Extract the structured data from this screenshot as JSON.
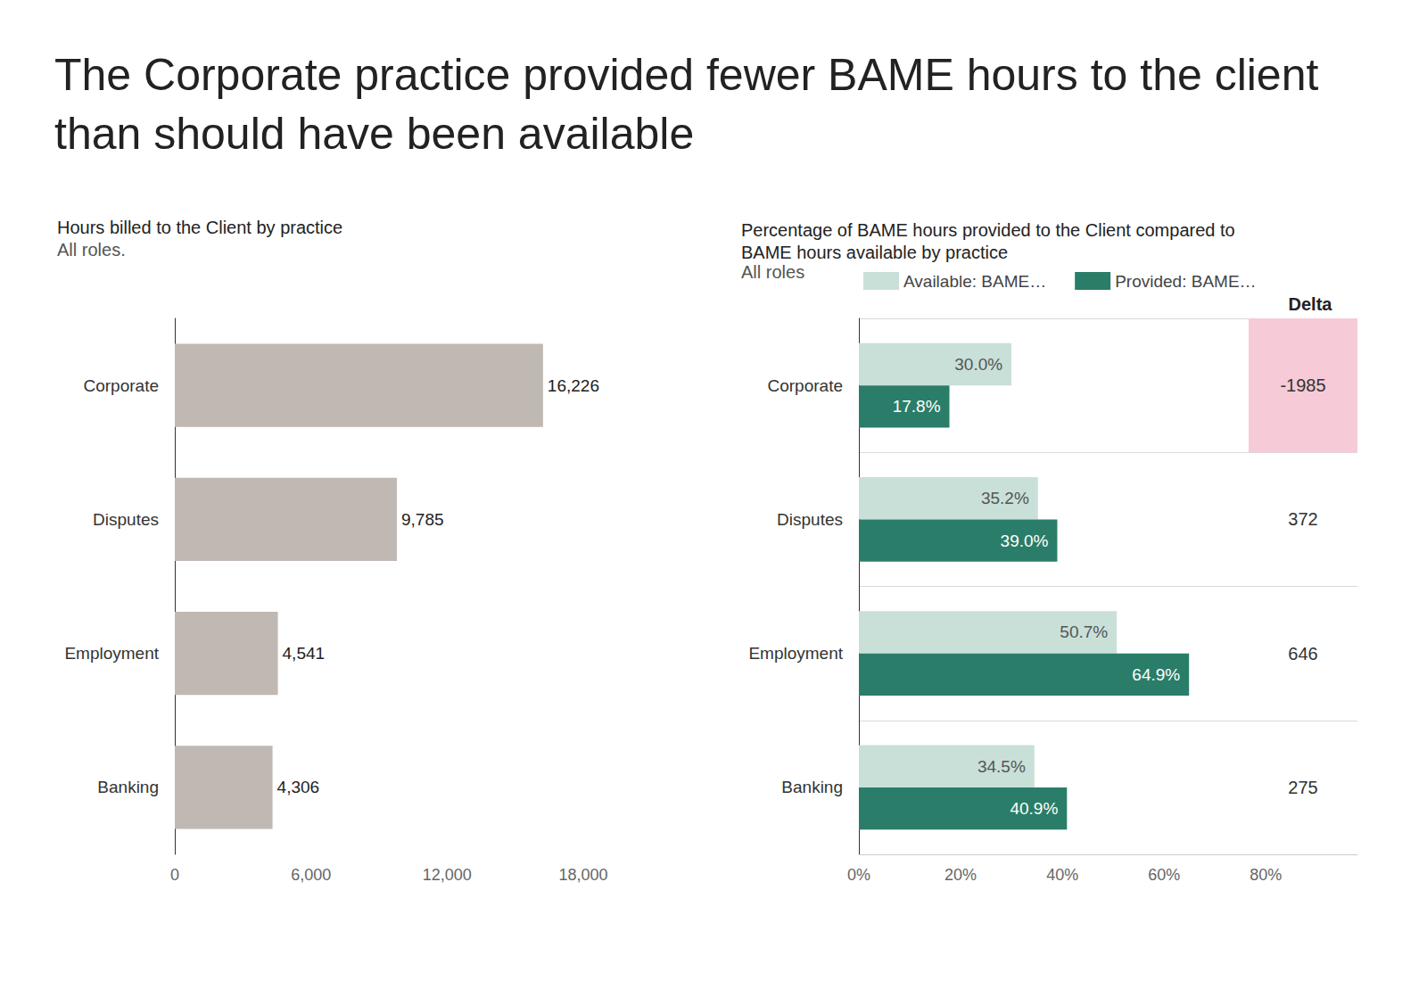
{
  "title": "The Corporate practice provided fewer BAME hours to the client than should have been available",
  "chart_data": [
    {
      "type": "bar",
      "title": "Hours billed to the Client by practice",
      "subtitle": "All roles.",
      "orientation": "horizontal",
      "categories": [
        "Corporate",
        "Disputes",
        "Employment",
        "Banking"
      ],
      "values": [
        16226,
        9785,
        4541,
        4306
      ],
      "value_labels": [
        "16,226",
        "9,785",
        "4,541",
        "4,306"
      ],
      "color": "#bfb8b3",
      "data_labels": true,
      "grid": false,
      "xlim": [
        0,
        18000
      ],
      "xticks": [
        0,
        {
          "value": 6000,
          "label": "6,000"
        },
        {
          "value": 12000,
          "label": "12,000"
        },
        {
          "value": 18000,
          "label": "18,000"
        }
      ]
    },
    {
      "type": "bar",
      "title": "Percentage of BAME hours provided to the Client compared to BAME hours available by practice",
      "subtitle": "All roles",
      "orientation": "horizontal",
      "categories": [
        "Corporate",
        "Disputes",
        "Employment",
        "Banking"
      ],
      "series": [
        {
          "name": "Available: BAME…",
          "color": "#c9e0d9",
          "values": [
            30.0,
            35.2,
            50.7,
            34.5
          ],
          "value_labels": [
            "30.0%",
            "35.2%",
            "50.7%",
            "34.5%"
          ]
        },
        {
          "name": "Provided: BAME…",
          "color": "#2a7d68",
          "values": [
            17.8,
            39.0,
            64.9,
            40.9
          ],
          "value_labels": [
            "17.8%",
            "39.0%",
            "64.9%",
            "40.9%"
          ]
        }
      ],
      "data_labels": true,
      "grid": true,
      "legend": "top left",
      "xlim": [
        0,
        98
      ],
      "xticks": [
        {
          "value": 0,
          "label": "0%"
        },
        {
          "value": 20,
          "label": "20%"
        },
        {
          "value": 40,
          "label": "40%"
        },
        {
          "value": 60,
          "label": "60%"
        },
        {
          "value": 80,
          "label": "80%"
        }
      ],
      "delta": {
        "title": "Delta",
        "values": [
          -1985,
          372,
          646,
          275
        ]
      }
    }
  ]
}
